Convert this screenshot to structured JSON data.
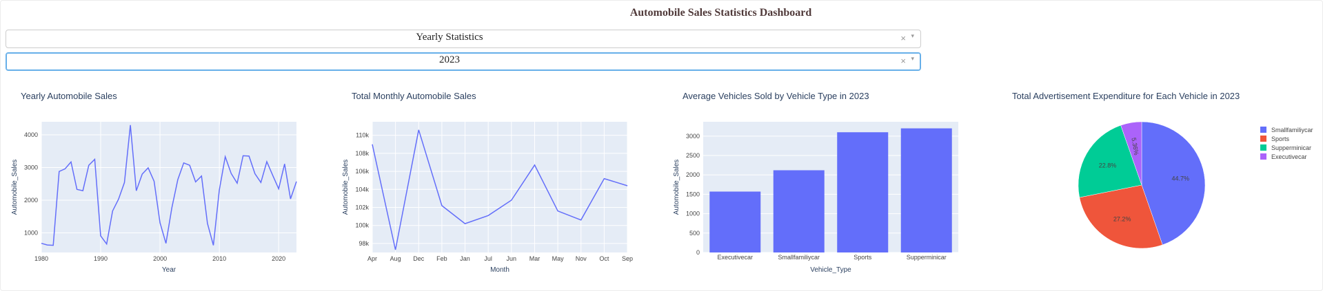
{
  "header": {
    "title": "Automobile Sales Statistics Dashboard"
  },
  "dropdowns": [
    {
      "value": "Yearly Statistics",
      "clear_glyph": "×",
      "arrow_glyph": "▾"
    },
    {
      "value": "2023",
      "clear_glyph": "×",
      "arrow_glyph": "▾"
    }
  ],
  "colors": {
    "plot_bg": "#e5ecf6",
    "line": "#636efa",
    "bar": "#636efa",
    "pie": [
      "#636efa",
      "#ef553b",
      "#00cc96",
      "#ab63fa"
    ]
  },
  "chart_data": [
    {
      "type": "line",
      "title": "Yearly Automobile Sales",
      "xlabel": "Year",
      "ylabel": "Automobile_Sales",
      "xlim": [
        1980,
        2023
      ],
      "ylim": [
        400,
        4400
      ],
      "xticks": [
        1980,
        1990,
        2000,
        2010,
        2020
      ],
      "yticks": [
        1000,
        2000,
        3000,
        4000
      ],
      "x": [
        1980,
        1981,
        1982,
        1983,
        1984,
        1985,
        1986,
        1987,
        1988,
        1989,
        1990,
        1991,
        1992,
        1993,
        1994,
        1995,
        1996,
        1997,
        1998,
        1999,
        2000,
        2001,
        2002,
        2003,
        2004,
        2005,
        2006,
        2007,
        2008,
        2009,
        2010,
        2011,
        2012,
        2013,
        2014,
        2015,
        2016,
        2017,
        2018,
        2019,
        2020,
        2021,
        2022,
        2023
      ],
      "y": [
        680,
        630,
        620,
        2880,
        2960,
        3170,
        2330,
        2290,
        3070,
        3250,
        910,
        660,
        1670,
        2030,
        2540,
        4300,
        2290,
        2800,
        2990,
        2580,
        1310,
        680,
        1770,
        2630,
        3140,
        3070,
        2560,
        2740,
        1290,
        620,
        2310,
        3330,
        2820,
        2520,
        3360,
        3350,
        2810,
        2540,
        3180,
        2760,
        2350,
        3110,
        2040,
        2570
      ]
    },
    {
      "type": "line",
      "title": "Total Monthly Automobile Sales",
      "xlabel": "Month",
      "ylabel": "Automobile_Sales",
      "categories": [
        "Apr",
        "Aug",
        "Dec",
        "Feb",
        "Jan",
        "Jul",
        "Jun",
        "Mar",
        "May",
        "Nov",
        "Oct",
        "Sep"
      ],
      "values": [
        109000,
        97300,
        110600,
        102200,
        100200,
        101100,
        102800,
        106700,
        101600,
        100600,
        105200,
        104400
      ],
      "ylim": [
        97000,
        111500
      ],
      "ytick_values": [
        98000,
        100000,
        102000,
        104000,
        106000,
        108000,
        110000
      ],
      "ytick_labels": [
        "98k",
        "100k",
        "102k",
        "104k",
        "106k",
        "108k",
        "110k"
      ]
    },
    {
      "type": "bar",
      "title": "Average Vehicles Sold by Vehicle Type in 2023",
      "xlabel": "Vehicle_Type",
      "ylabel": "Automobile_Sales",
      "categories": [
        "Executivecar",
        "Smallfamiliycar",
        "Sports",
        "Supperminicar"
      ],
      "values": [
        1570,
        2120,
        3100,
        3200
      ],
      "ylim": [
        0,
        3370
      ],
      "yticks": [
        0,
        500,
        1000,
        1500,
        2000,
        2500,
        3000
      ]
    },
    {
      "type": "pie",
      "title": "Total Advertisement Expenditure for Each Vehicle in 2023",
      "labels": [
        "Smallfamiliycar",
        "Sports",
        "Supperminicar",
        "Executivecar"
      ],
      "values": [
        44.7,
        27.2,
        22.8,
        5.36
      ],
      "value_labels": [
        "44.7%",
        "27.2%",
        "22.8%",
        "5.36%"
      ],
      "legend": "top-right"
    }
  ]
}
